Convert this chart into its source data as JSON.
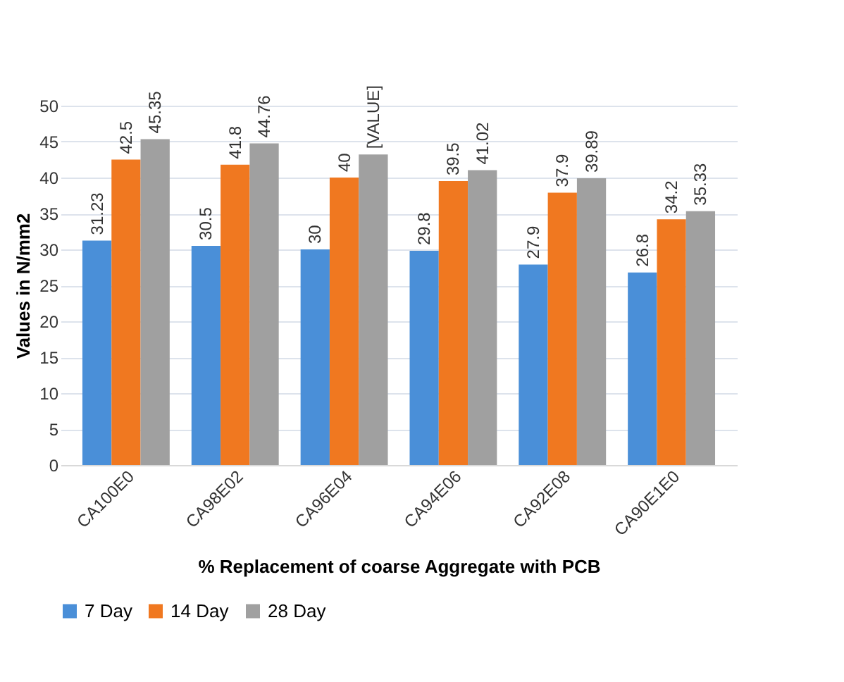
{
  "chart_data": {
    "type": "bar",
    "xlabel": "% Replacement of coarse Aggregate with PCB",
    "ylabel": "Values in N/mm2",
    "categories": [
      "CA100E0",
      "CA98E02",
      "CA96E04",
      "CA94E06",
      "CA92E08",
      "CA90E1E0"
    ],
    "series": [
      {
        "name": "7 Day",
        "color": "#4a8fd8",
        "values": [
          31.23,
          30.5,
          30,
          29.8,
          27.9,
          26.8
        ],
        "value_labels": [
          "31.23",
          "30.5",
          "30",
          "29.8",
          "27.9",
          "26.8"
        ]
      },
      {
        "name": "14 Day",
        "color": "#f07820",
        "values": [
          42.5,
          41.8,
          40,
          39.5,
          37.9,
          34.2
        ],
        "value_labels": [
          "42.5",
          "41.8",
          "40",
          "39.5",
          "37.9",
          "34.2"
        ]
      },
      {
        "name": "28 Day",
        "color": "#a0a0a0",
        "values": [
          45.35,
          44.76,
          43.2,
          41.02,
          39.89,
          35.33
        ],
        "value_labels": [
          "45.35",
          "44.76",
          "[VALUE]",
          "41.02",
          "39.89",
          "35.33"
        ]
      }
    ],
    "ylim": [
      0,
      50
    ],
    "yticks": [
      0,
      5,
      10,
      15,
      20,
      25,
      30,
      35,
      40,
      45,
      50
    ],
    "grid": "y",
    "legend": "bottom"
  }
}
